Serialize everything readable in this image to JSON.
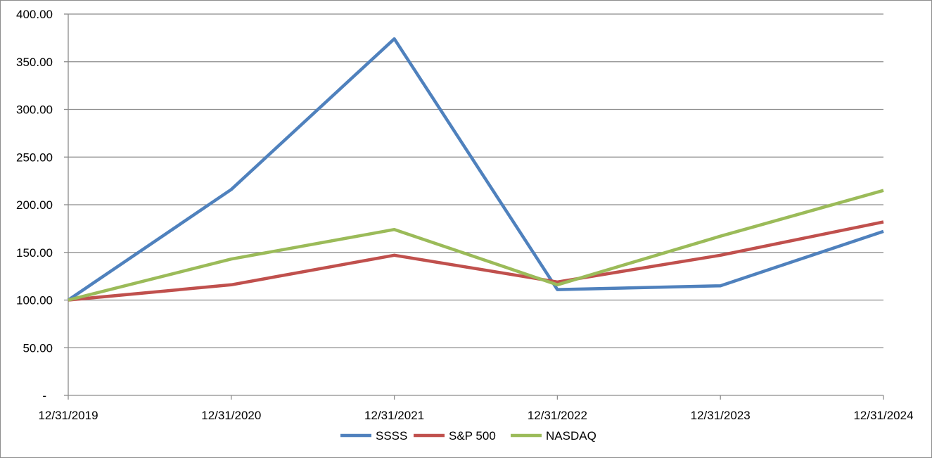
{
  "chart_data": {
    "type": "line",
    "title": "",
    "xlabel": "",
    "ylabel": "",
    "x": [
      "12/31/2019",
      "12/31/2020",
      "12/31/2021",
      "12/31/2022",
      "12/31/2023",
      "12/31/2024"
    ],
    "y_ticks": [
      "-",
      "50.00",
      "100.00",
      "150.00",
      "200.00",
      "250.00",
      "300.00",
      "350.00",
      "400.00"
    ],
    "ylim": [
      0,
      400
    ],
    "grid": true,
    "legend_position": "bottom",
    "series": [
      {
        "name": "SSSS",
        "color": "#4f81bd",
        "values": [
          100,
          216,
          374,
          111,
          115,
          172
        ]
      },
      {
        "name": "S&P 500",
        "color": "#c0504d",
        "values": [
          100,
          116,
          147,
          119,
          147,
          182
        ]
      },
      {
        "name": "NASDAQ",
        "color": "#9bbb59",
        "values": [
          100,
          143,
          174,
          116,
          167,
          215
        ]
      }
    ]
  }
}
